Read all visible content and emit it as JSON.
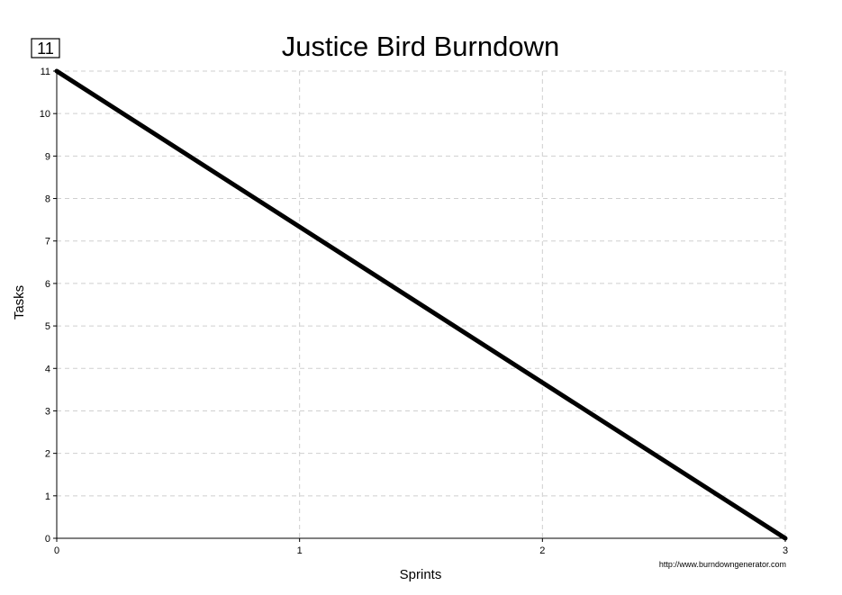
{
  "chart_data": {
    "type": "line",
    "title": "Justice Bird Burndown",
    "xlabel": "Sprints",
    "ylabel": "Tasks",
    "x_ticks": [
      "0",
      "1",
      "2",
      "3"
    ],
    "y_ticks": [
      "0",
      "1",
      "2",
      "3",
      "4",
      "5",
      "6",
      "7",
      "8",
      "9",
      "10",
      "11"
    ],
    "xlim": [
      0,
      3
    ],
    "ylim": [
      0,
      11
    ],
    "grid": true,
    "series": [
      {
        "x": [
          0,
          3
        ],
        "y": [
          11,
          0
        ],
        "color": "#000000"
      }
    ],
    "badge": "11",
    "source": "http://www.burndowngenerator.com"
  }
}
